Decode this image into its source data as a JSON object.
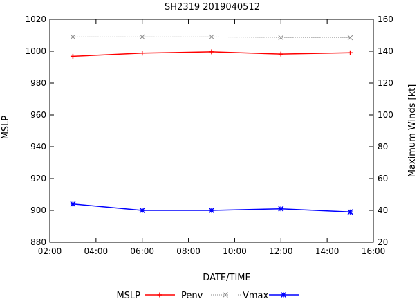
{
  "chart_data": {
    "type": "line",
    "title": "SH2319 2019040512",
    "xlabel": "DATE/TIME",
    "ylabel_left": "MSLP",
    "ylabel_right": "Maximum Winds [kt]",
    "x_ticks": [
      "02:00",
      "04:00",
      "06:00",
      "08:00",
      "10:00",
      "12:00",
      "14:00",
      "16:00"
    ],
    "x_range_hours": [
      2,
      16
    ],
    "y_left_range": [
      880,
      1020
    ],
    "y_left_ticks": [
      880,
      900,
      920,
      940,
      960,
      980,
      1000,
      1020
    ],
    "y_right_range": [
      20,
      160
    ],
    "y_right_ticks": [
      20,
      40,
      60,
      80,
      100,
      120,
      140,
      160
    ],
    "grid": false,
    "legend_position": "bottom",
    "legend_title": "MSLP",
    "series": [
      {
        "name": "Penv",
        "axis": "left",
        "color": "#ff0000",
        "marker": "plus",
        "line": "solid",
        "x": [
          3,
          6,
          9,
          12,
          15
        ],
        "values": [
          996.8,
          998.8,
          999.6,
          998.2,
          999.0
        ]
      },
      {
        "name": "Vmax",
        "axis": "left",
        "color": "#888888",
        "marker": "cross",
        "line": "dotted",
        "x": [
          3,
          6,
          9,
          12,
          15
        ],
        "values": [
          1009,
          1009,
          1009,
          1008.5,
          1008.5
        ]
      },
      {
        "name": "",
        "axis": "left",
        "color": "#0000ff",
        "marker": "star",
        "line": "solid",
        "x": [
          3,
          6,
          9,
          12,
          15
        ],
        "values": [
          904,
          900,
          900,
          901,
          899
        ]
      }
    ]
  }
}
